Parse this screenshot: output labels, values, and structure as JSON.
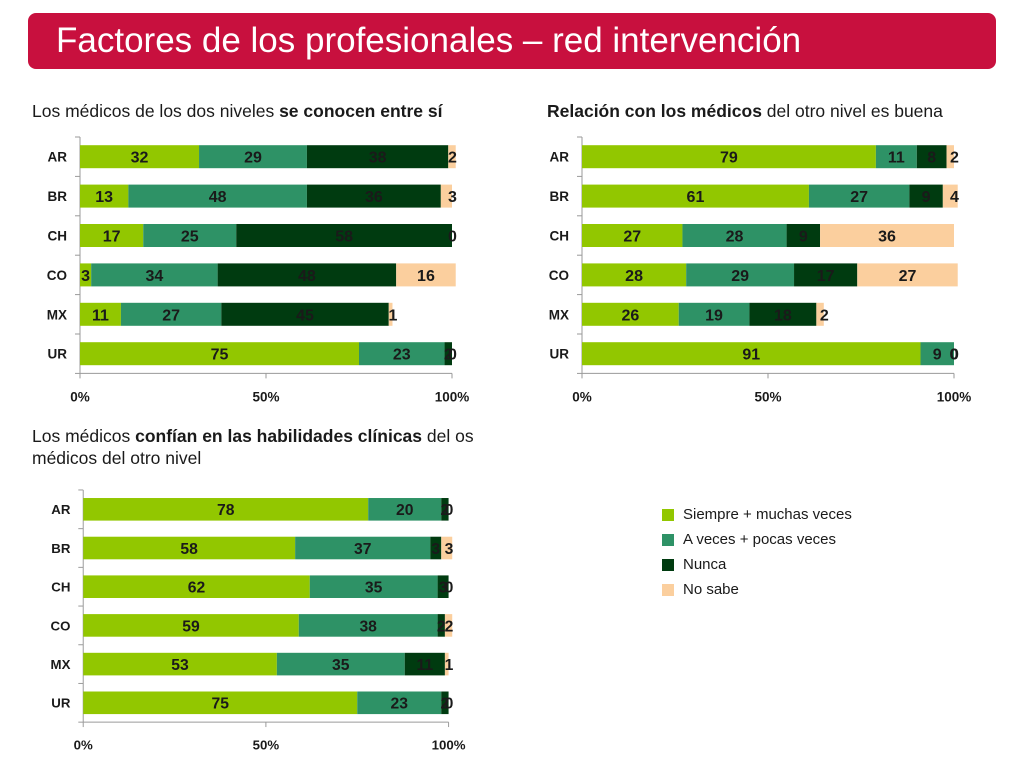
{
  "title": "Factores de los profesionales – red intervención",
  "captions": [
    {
      "pre": "Los médicos de los dos niveles ",
      "bold": "se conocen entre sí",
      "post": ""
    },
    {
      "pre": "",
      "bold": "Relación con los médicos",
      "post": " del otro nivel es buena"
    },
    {
      "pre": "Los médicos ",
      "bold": "confían en las habilidades clínicas",
      "post": " del os médicos del otro nivel"
    }
  ],
  "colors": [
    "#92c700",
    "#2e9266",
    "#003b10",
    "#fbcf9e"
  ],
  "legend": [
    "Siempre + muchas veces",
    "A veces + pocas veces",
    "Nunca",
    "No sabe"
  ],
  "chart_data": [
    {
      "type": "bar",
      "orientation": "horizontal",
      "stacked": true,
      "categories": [
        "AR",
        "BR",
        "CH",
        "CO",
        "MX",
        "UR"
      ],
      "series": [
        {
          "name": "Siempre + muchas veces",
          "values": [
            32,
            13,
            17,
            3,
            11,
            75
          ]
        },
        {
          "name": "A veces + pocas veces",
          "values": [
            29,
            48,
            25,
            34,
            27,
            23
          ]
        },
        {
          "name": "Nunca",
          "values": [
            38,
            36,
            58,
            48,
            45,
            2
          ]
        },
        {
          "name": "No sabe",
          "values": [
            2,
            3,
            0,
            16,
            1,
            0
          ]
        }
      ],
      "xticks": [
        "0%",
        "50%",
        "100%"
      ],
      "xlim": [
        0,
        100
      ]
    },
    {
      "type": "bar",
      "orientation": "horizontal",
      "stacked": true,
      "categories": [
        "AR",
        "BR",
        "CH",
        "CO",
        "MX",
        "UR"
      ],
      "series": [
        {
          "name": "Siempre + muchas veces",
          "values": [
            79,
            61,
            27,
            28,
            26,
            91
          ]
        },
        {
          "name": "A veces + pocas veces",
          "values": [
            11,
            27,
            28,
            29,
            19,
            9
          ]
        },
        {
          "name": "Nunca",
          "values": [
            8,
            9,
            9,
            17,
            18,
            0
          ]
        },
        {
          "name": "No sabe",
          "values": [
            2,
            4,
            36,
            27,
            2,
            0
          ]
        }
      ],
      "xticks": [
        "0%",
        "50%",
        "100%"
      ],
      "xlim": [
        0,
        100
      ]
    },
    {
      "type": "bar",
      "orientation": "horizontal",
      "stacked": true,
      "categories": [
        "AR",
        "BR",
        "CH",
        "CO",
        "MX",
        "UR"
      ],
      "series": [
        {
          "name": "Siempre + muchas veces",
          "values": [
            78,
            58,
            62,
            59,
            53,
            75
          ]
        },
        {
          "name": "A veces + pocas veces",
          "values": [
            20,
            37,
            35,
            38,
            35,
            23
          ]
        },
        {
          "name": "Nunca",
          "values": [
            2,
            3,
            3,
            2,
            11,
            2
          ]
        },
        {
          "name": "No sabe",
          "values": [
            0,
            3,
            0,
            2,
            1,
            0
          ]
        }
      ],
      "xticks": [
        "0%",
        "50%",
        "100%"
      ],
      "xlim": [
        0,
        100
      ]
    }
  ]
}
